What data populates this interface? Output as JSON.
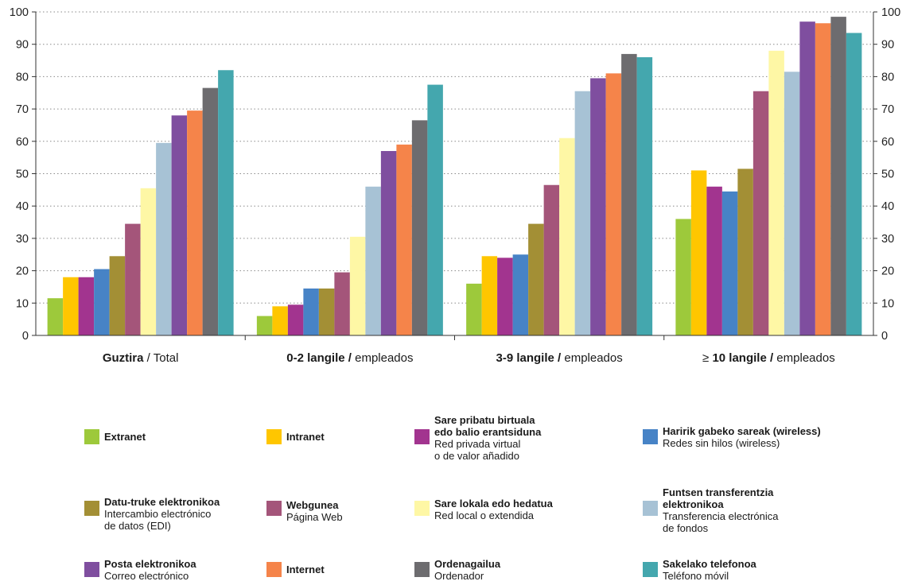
{
  "chart_data": {
    "type": "bar",
    "ylim": [
      0,
      100
    ],
    "yticks": [
      0,
      10,
      20,
      30,
      40,
      50,
      60,
      70,
      80,
      90,
      100
    ],
    "grid": "horizontal dotted",
    "categories": [
      {
        "bold": "Guztira",
        "normal": " / Total"
      },
      {
        "bold": "0-2 langile /",
        "normal": " empleados"
      },
      {
        "bold": "3-9 langile /",
        "normal": " empleados"
      },
      {
        "prefix": "≥ ",
        "bold": "10 langile /",
        "normal": " empleados"
      }
    ],
    "series": [
      {
        "id": "extranet",
        "color": "#9dc93b",
        "values": [
          11.5,
          6,
          16,
          36
        ],
        "legend_bold": [
          "Extranet"
        ],
        "legend_normal": []
      },
      {
        "id": "intranet",
        "color": "#ffc600",
        "values": [
          18,
          9,
          24.5,
          51
        ],
        "legend_bold": [
          "Intranet"
        ],
        "legend_normal": []
      },
      {
        "id": "vpn",
        "color": "#a2348f",
        "values": [
          18,
          9.5,
          24,
          46
        ],
        "legend_bold": [
          "Sare pribatu birtuala",
          "edo balio erantsiduna"
        ],
        "legend_normal": [
          "Red privada virtual",
          "o de valor añadido"
        ]
      },
      {
        "id": "wireless",
        "color": "#4783c6",
        "values": [
          20.5,
          14.5,
          25,
          44.5
        ],
        "legend_bold": [
          "Haririk gabeko sareak (wireless)"
        ],
        "legend_normal": [
          "Redes sin  hilos (wireless)"
        ]
      },
      {
        "id": "edi",
        "color": "#a38f35",
        "values": [
          24.5,
          14.5,
          34.5,
          51.5
        ],
        "legend_bold": [
          "Datu-truke elektronikoa"
        ],
        "legend_normal": [
          "Intercambio electrónico",
          "de datos (EDI)"
        ]
      },
      {
        "id": "web",
        "color": "#a4557a",
        "values": [
          34.5,
          19.5,
          46.5,
          75.5
        ],
        "legend_bold": [
          "Webgunea"
        ],
        "legend_normal": [
          "Página Web"
        ]
      },
      {
        "id": "lan",
        "color": "#fef7a5",
        "values": [
          45.5,
          30.5,
          61,
          88
        ],
        "legend_bold": [
          "Sare lokala edo hedatua"
        ],
        "legend_normal": [
          "Red local o extendida"
        ]
      },
      {
        "id": "eft",
        "color": "#a7c2d5",
        "values": [
          59.5,
          46,
          75.5,
          81.5
        ],
        "legend_bold": [
          "Funtsen transferentzia",
          " elektronikoa"
        ],
        "legend_normal": [
          "Transferencia electrónica",
          "de fondos"
        ]
      },
      {
        "id": "email",
        "color": "#7f4e9f",
        "values": [
          68,
          57,
          79.5,
          97
        ],
        "legend_bold": [
          "Posta elektronikoa"
        ],
        "legend_normal": [
          "Correo electrónico"
        ]
      },
      {
        "id": "internet",
        "color": "#f5844a",
        "values": [
          69.5,
          59,
          81,
          96.5
        ],
        "legend_bold": [
          "Internet"
        ],
        "legend_normal": []
      },
      {
        "id": "computer",
        "color": "#6d6c6f",
        "values": [
          76.5,
          66.5,
          87,
          98.5
        ],
        "legend_bold": [
          "Ordenagailua"
        ],
        "legend_normal": [
          "Ordenador"
        ]
      },
      {
        "id": "mobile",
        "color": "#44a7ae",
        "values": [
          82,
          77.5,
          86,
          93.5
        ],
        "legend_bold": [
          "Sakelako telefonoa"
        ],
        "legend_normal": [
          "Teléfono móvil"
        ]
      }
    ]
  }
}
